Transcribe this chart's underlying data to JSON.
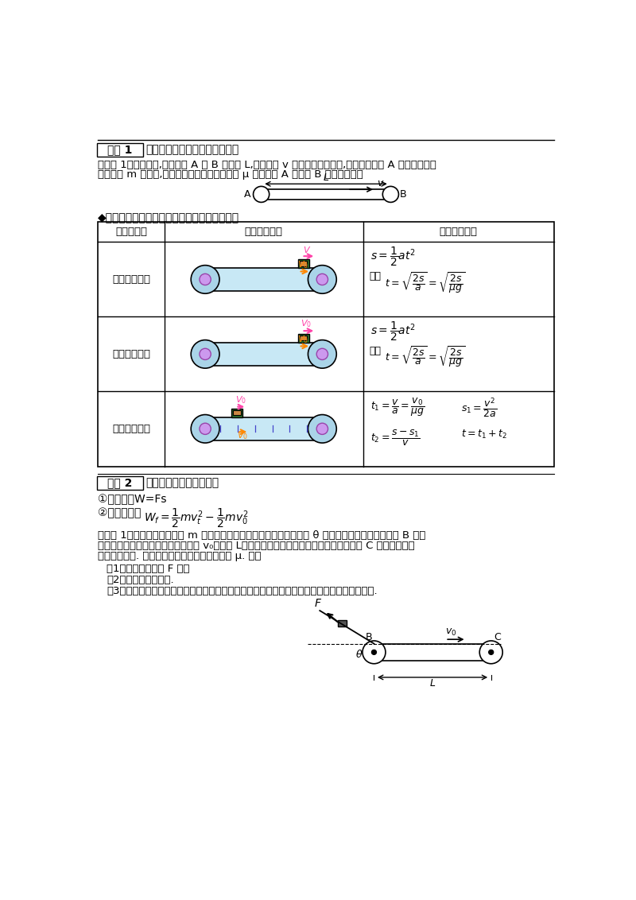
{
  "page_bg": "#ffffff",
  "title1_box": "考点 1",
  "title1_text": "分析滑块在传送带上运动的时间",
  "line1": "【模型 1】如图所示,传送带从 A 到 B 长度为 L,传送带以 v 的速率顺时针转动,在传送带上端 A 无初速地放一",
  "line2": "个质量为 m 的物体,它与传送带间的动摩擦因数 μ 求物体从 A 运动到 B 需要的时间。",
  "section_title": "◆无初速度的滑块在水平传送带上的运动的时间",
  "table_headers": [
    "传送带长度",
    "滑块运动情景",
    "滑块运动时间"
  ],
  "row1_label": "传送带不够长",
  "row2_label": "传送带刚够长",
  "row3_label": "传送带足够长",
  "title2_box": "考点 2",
  "title2_text": "分析摩擦力对滑块做的功",
  "formula1": "①公式法：W=Fs",
  "formula2_prefix": "②动能定理：",
  "ex_line1": "【典例 1】如图所示，质量为 m 的滑块，在水平力作用下静止在倾角为 θ 在光滑斜面上，斜面的末端 B 与水",
  "ex_line2": "平传送带相接，传送带的运行速度为 v₀，长为 L；今将水平力撤去，当滑块滑到传送带右端 C 时，恰好与传",
  "ex_line3": "送带速度相同. 滑块与传送带间的动摩擦因数为 μ. 求：",
  "sub1": "（1）水平作用力力 F 大小",
  "sub2": "（2）滑块下滑的高度.",
  "sub3": "（3）若滑块进入传送带速度大于传送带的速度，滑块在传送带上滑行的整个过程中产生的热量.",
  "conveyor_fill": "#c8e8f5",
  "pulley_fill": "#aad4e8",
  "pulley_inner_fill": "#cc99ee",
  "pulley_inner_edge": "#9944aa",
  "block_outer_fill": "#2d6e2d",
  "block_inner_fill": "#cc8844",
  "arrow_pink": "#ff44aa",
  "arrow_orange": "#ff8800",
  "tick_color": "#4444cc"
}
